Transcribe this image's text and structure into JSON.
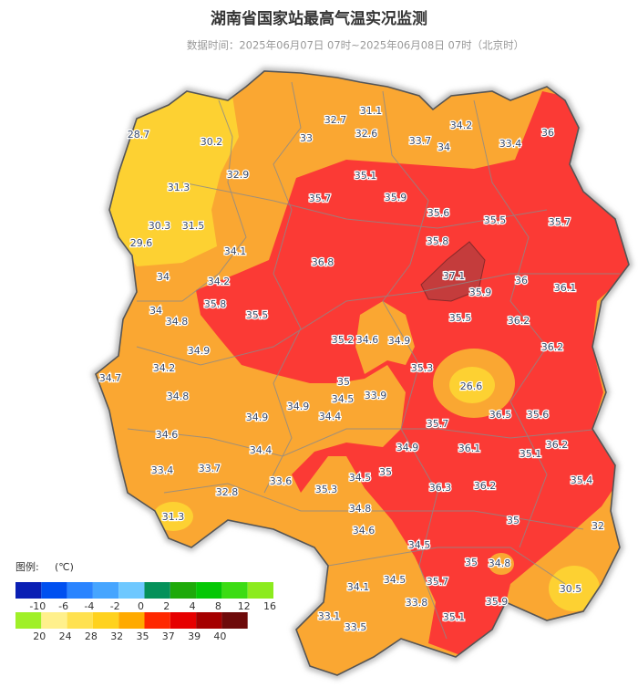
{
  "header": {
    "title": "湖南省国家站最高气温实况监测",
    "subtitle": "数据时间：2025年06月07日 07时~2025年06月08日 07时（北京时）"
  },
  "stations": [
    28.7,
    30.2,
    32.7,
    31.1,
    32.6,
    33,
    33.7,
    34.2,
    34,
    33.4,
    36,
    32.9,
    31.3,
    35.1,
    35.7,
    35.9,
    35.6,
    35.5,
    35.7,
    30.3,
    31.5,
    29.6,
    34.1,
    35.8,
    36.8,
    37.1,
    34,
    34.2,
    36,
    36.1,
    35.9,
    35.8,
    34,
    35.5,
    35.5,
    36.2,
    34.8,
    35.2,
    34.6,
    34.9,
    36.2,
    34.9,
    34.7,
    34.2,
    35.3,
    35,
    26.6,
    34.8,
    34.5,
    33.9,
    34.9,
    34.4,
    36.5,
    35.6,
    34.9,
    35.7,
    34.6,
    36.1,
    36.2,
    34.4,
    34.9,
    35.1,
    33.4,
    33.7,
    34.5,
    35,
    33.6,
    35.4,
    35.3,
    36.3,
    36.2,
    32.8,
    34.8,
    31.3,
    35,
    32,
    34.6,
    34.5,
    35,
    34.8,
    34.5,
    35.7,
    34.1,
    30.5,
    35.9,
    33.8,
    33.1,
    35.1,
    33.5
  ],
  "legend": {
    "title": "图例:",
    "unit": "(℃)",
    "rows": [
      {
        "labels": [
          -10,
          -6,
          -4,
          -2,
          0,
          2,
          4,
          8,
          12,
          16
        ],
        "colors": [
          "#0a1fb4",
          "#0050f0",
          "#2a84ff",
          "#46a5ff",
          "#6ec8ff",
          "#05915a",
          "#1eaa0a",
          "#05c805",
          "#3cdc14",
          "#8ceb1e"
        ]
      },
      {
        "labels": [
          20,
          24,
          28,
          32,
          35,
          37,
          39,
          40
        ],
        "colors": [
          "#a0f028",
          "#fff08c",
          "#ffe150",
          "#ffd21e",
          "#ffaa00",
          "#ff2800",
          "#e60000",
          "#a50000",
          "#6e0a0a"
        ]
      }
    ]
  }
}
